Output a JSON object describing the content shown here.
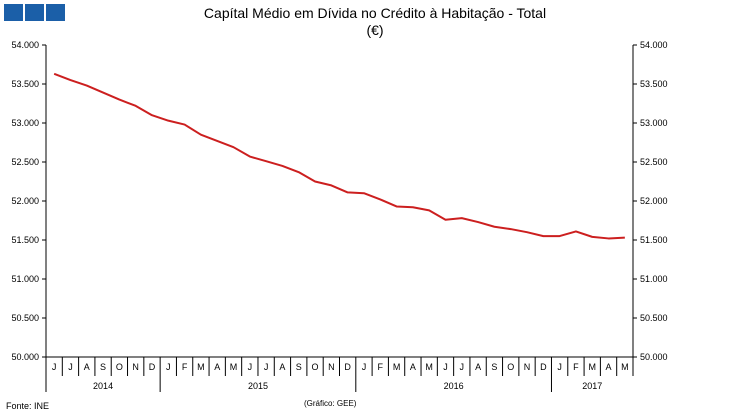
{
  "chart_data": {
    "type": "line",
    "title": "Capítal Médio em Dívida no Crédito à Habitação - Total",
    "subtitle": "(€)",
    "source": "Fonte: INE",
    "credit": "(Gráfico: GEE)",
    "ylim": [
      50000,
      54000
    ],
    "yticks": [
      50000,
      50500,
      51000,
      51500,
      52000,
      52500,
      53000,
      53500,
      54000
    ],
    "ytick_labels": [
      "50.000",
      "50.500",
      "51.000",
      "51.500",
      "52.000",
      "52.500",
      "53.000",
      "53.500",
      "54.000"
    ],
    "categories": [
      "J",
      "J",
      "A",
      "S",
      "O",
      "N",
      "D",
      "J",
      "F",
      "M",
      "A",
      "M",
      "J",
      "J",
      "A",
      "S",
      "O",
      "N",
      "D",
      "J",
      "F",
      "M",
      "A",
      "M",
      "J",
      "J",
      "A",
      "S",
      "O",
      "N",
      "D",
      "J",
      "F",
      "M",
      "A",
      "M"
    ],
    "years": [
      {
        "label": "2014",
        "start": 0,
        "end": 6
      },
      {
        "label": "2015",
        "start": 7,
        "end": 18
      },
      {
        "label": "2016",
        "start": 19,
        "end": 30
      },
      {
        "label": "2017",
        "start": 31,
        "end": 35
      }
    ],
    "series": [
      {
        "name": "Total",
        "color": "#cc1f1f",
        "values": [
          53630,
          53550,
          53480,
          53390,
          53300,
          53220,
          53100,
          53030,
          52980,
          52850,
          52770,
          52690,
          52570,
          52510,
          52450,
          52370,
          52250,
          52200,
          52110,
          52100,
          52020,
          51930,
          51920,
          51880,
          51760,
          51780,
          51730,
          51670,
          51640,
          51600,
          51550,
          51550,
          51610,
          51540,
          51520,
          51530
        ]
      }
    ]
  }
}
